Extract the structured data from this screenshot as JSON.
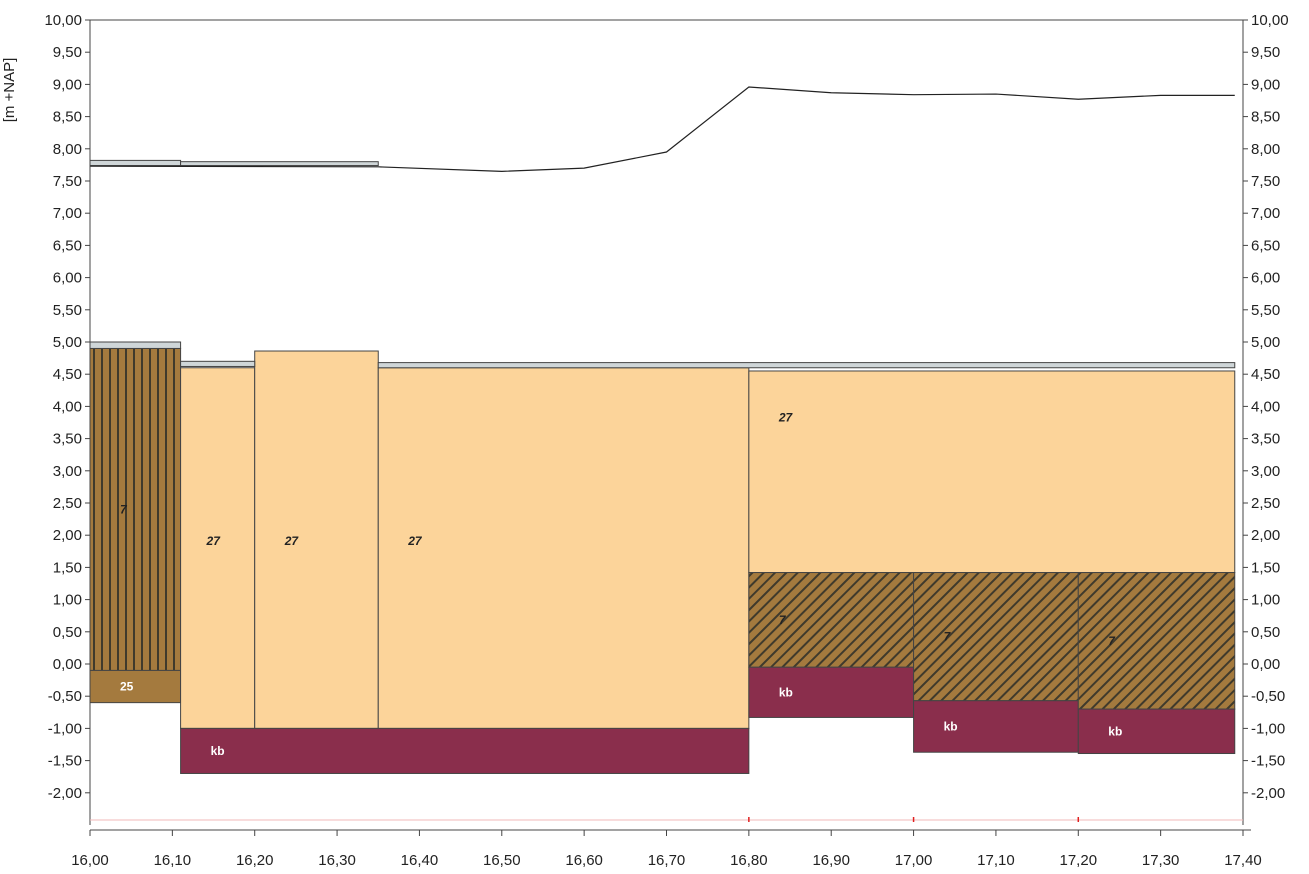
{
  "chart_data": {
    "type": "area",
    "title": "",
    "ylabel": "[m +NAP]",
    "xlabel": "",
    "xlim": [
      16.0,
      17.4
    ],
    "ylim": [
      -2.5,
      10.0
    ],
    "x_ticks": [
      "16,00",
      "16,10",
      "16,20",
      "16,30",
      "16,40",
      "16,50",
      "16,60",
      "16,70",
      "16,80",
      "16,90",
      "17,00",
      "17,10",
      "17,20",
      "17,30",
      "17,40"
    ],
    "y_ticks": [
      "10,00",
      "9,50",
      "9,00",
      "8,50",
      "8,00",
      "7,50",
      "7,00",
      "6,50",
      "6,00",
      "5,50",
      "5,00",
      "4,50",
      "4,00",
      "3,50",
      "3,00",
      "2,50",
      "2,00",
      "1,50",
      "1,00",
      "0,50",
      "0,00",
      "-0,50",
      "-1,00",
      "-1,50",
      "-2,00"
    ],
    "grid": false,
    "surface_line": {
      "x": [
        16.0,
        16.35,
        16.5,
        16.6,
        16.7,
        16.8,
        16.9,
        17.0,
        17.1,
        17.2,
        17.3,
        17.39
      ],
      "y": [
        7.73,
        7.72,
        7.65,
        7.7,
        7.95,
        8.96,
        8.87,
        8.84,
        8.85,
        8.77,
        8.83,
        8.83
      ]
    },
    "thin_strips": [
      {
        "x0": 16.0,
        "x1": 16.11,
        "top": 7.82,
        "bottom": 7.74
      },
      {
        "x0": 16.11,
        "x1": 16.35,
        "top": 7.8,
        "bottom": 7.74
      },
      {
        "x0": 16.0,
        "x1": 16.11,
        "top": 5.0,
        "bottom": 4.9
      },
      {
        "x0": 16.11,
        "x1": 16.2,
        "top": 4.7,
        "bottom": 4.62
      },
      {
        "x0": 16.35,
        "x1": 17.39,
        "top": 4.68,
        "bottom": 4.6
      }
    ],
    "layers": [
      {
        "label": "7",
        "pattern": "vertical",
        "x0": 16.0,
        "x1": 16.11,
        "top": 4.9,
        "bottom": -0.1
      },
      {
        "label": "25",
        "pattern": "solid-brown",
        "x0": 16.0,
        "x1": 16.11,
        "top": -0.1,
        "bottom": -0.6
      },
      {
        "label": "27",
        "pattern": "sand",
        "x0": 16.11,
        "x1": 16.2,
        "top": 4.6,
        "bottom": -1.0
      },
      {
        "label": "27",
        "pattern": "sand",
        "x0": 16.2,
        "x1": 16.35,
        "top": 4.86,
        "bottom": -1.0
      },
      {
        "label": "27",
        "pattern": "sand",
        "x0": 16.35,
        "x1": 16.8,
        "top": 4.6,
        "bottom": -1.0
      },
      {
        "label": "kb",
        "pattern": "clay",
        "x0": 16.11,
        "x1": 16.8,
        "top": -1.0,
        "bottom": -1.7
      },
      {
        "label": "27",
        "pattern": "sand",
        "x0": 16.8,
        "x1": 17.39,
        "top": 4.55,
        "bottom": 1.42
      },
      {
        "label": "7",
        "pattern": "diagonal",
        "x0": 16.8,
        "x1": 17.0,
        "top": 1.42,
        "bottom": -0.05
      },
      {
        "label": "kb",
        "pattern": "clay",
        "x0": 16.8,
        "x1": 17.0,
        "top": -0.05,
        "bottom": -0.83
      },
      {
        "label": "7",
        "pattern": "diagonal",
        "x0": 17.0,
        "x1": 17.2,
        "top": 1.42,
        "bottom": -0.57
      },
      {
        "label": "kb",
        "pattern": "clay",
        "x0": 17.0,
        "x1": 17.2,
        "top": -0.57,
        "bottom": -1.37
      },
      {
        "label": "7",
        "pattern": "diagonal",
        "x0": 17.2,
        "x1": 17.39,
        "top": 1.42,
        "bottom": -0.7
      },
      {
        "label": "kb",
        "pattern": "clay",
        "x0": 17.2,
        "x1": 17.39,
        "top": -0.7,
        "bottom": -1.39
      }
    ],
    "colors": {
      "sand": "#fcd49a",
      "brown": "#a47a3e",
      "brown_dark": "#3f3a2c",
      "clay": "#8a2e4c",
      "strip": "#cfd6d8",
      "outline": "#444444",
      "marker": "#e02020"
    },
    "markers_x": [
      16.8,
      17.0,
      17.2
    ]
  }
}
